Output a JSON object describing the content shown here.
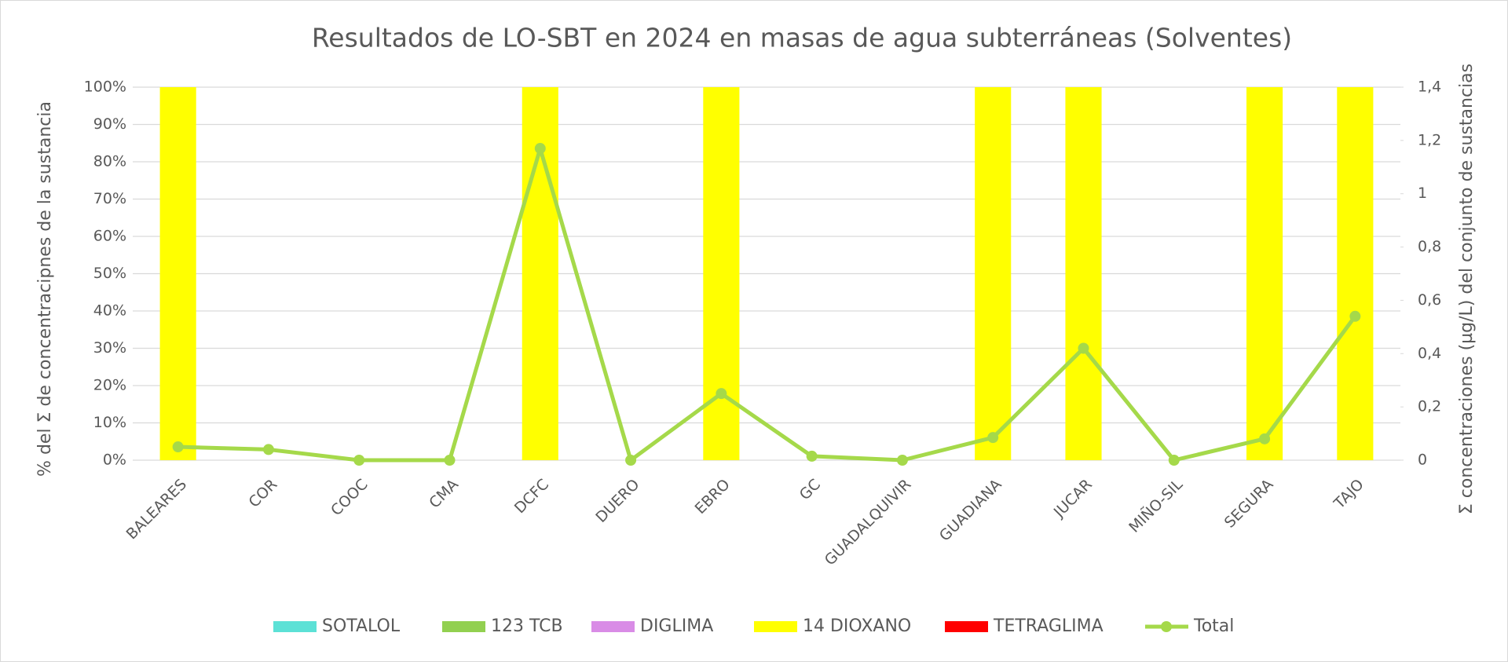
{
  "chart_data": {
    "type": "bar",
    "title": "Resultados de LO-SBT en 2024 en masas de agua subterráneas (Solventes)",
    "y_label": "% del Σ de concentracipnes de la sustancia",
    "y2_label": "Σ concentraciones (µg/L) del conjunto de sustancias",
    "categories": [
      "BALEARES",
      "COR",
      "COOC",
      "CMA",
      "DCFC",
      "DUERO",
      "EBRO",
      "GC",
      "GUADALQUIVIR",
      "GUADIANA",
      "JUCAR",
      "MIÑO-SIL",
      "SEGURA",
      "TAJO"
    ],
    "stacked": true,
    "series": [
      {
        "name": "SOTALOL",
        "color": "#5ce1d6",
        "values": [
          0,
          0,
          0,
          0,
          0,
          0,
          0,
          0,
          0,
          0,
          0,
          0,
          0,
          0
        ]
      },
      {
        "name": "123 TCB",
        "color": "#92d050",
        "values": [
          0,
          0,
          0,
          0,
          0,
          0,
          0,
          0,
          0,
          0,
          0,
          0,
          0,
          0
        ]
      },
      {
        "name": "DIGLIMA",
        "color": "#d98ce6",
        "values": [
          0,
          0,
          0,
          0,
          0,
          0,
          0,
          0,
          0,
          0,
          0,
          0,
          0,
          0
        ]
      },
      {
        "name": "14 DIOXANO",
        "color": "#ffff00",
        "values": [
          100,
          0,
          0,
          0,
          100,
          0,
          100,
          0,
          0,
          100,
          100,
          0,
          100,
          100
        ]
      },
      {
        "name": "TETRAGLIMA",
        "color": "#ff0000",
        "values": [
          0,
          0,
          0,
          0,
          0,
          0,
          0,
          0,
          0,
          0,
          0,
          0,
          0,
          0
        ]
      },
      {
        "name": "Total",
        "type": "line",
        "axis": "y2",
        "color": "#a5d94a",
        "values": [
          0.05,
          0.04,
          0.0,
          0.0,
          1.17,
          0.0,
          0.25,
          0.015,
          0.0,
          0.085,
          0.42,
          0.0,
          0.08,
          0.54
        ]
      }
    ],
    "ylim": [
      0,
      100
    ],
    "yticks": [
      {
        "value": 0,
        "label": "0%"
      },
      {
        "value": 10,
        "label": "10%"
      },
      {
        "value": 20,
        "label": "20%"
      },
      {
        "value": 30,
        "label": "30%"
      },
      {
        "value": 40,
        "label": "40%"
      },
      {
        "value": 50,
        "label": "50%"
      },
      {
        "value": 60,
        "label": "60%"
      },
      {
        "value": 70,
        "label": "70%"
      },
      {
        "value": 80,
        "label": "80%"
      },
      {
        "value": 90,
        "label": "90%"
      },
      {
        "value": 100,
        "label": "100%"
      }
    ],
    "y2lim": [
      0,
      1.4
    ],
    "y2ticks": [
      0,
      {
        "value": 0.2,
        "label": "0,2"
      },
      {
        "value": 0.4,
        "label": "0,4"
      },
      {
        "value": 0.6,
        "label": "0,6"
      },
      {
        "value": 0.8,
        "label": "0,8"
      },
      1,
      {
        "value": 1.2,
        "label": "1,2"
      },
      {
        "value": 1.4,
        "label": "1,4"
      }
    ],
    "grid": true,
    "legend": "bottom"
  }
}
